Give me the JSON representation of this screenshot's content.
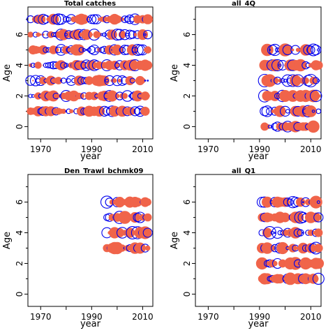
{
  "chart_data": [
    {
      "type": "scatter",
      "style": "bubble",
      "title": "Total catches",
      "xlabel": "year",
      "ylabel": "Age",
      "xlim": [
        1965,
        2014
      ],
      "ylim": [
        -0.8,
        7.8
      ],
      "xticks": [
        1970,
        1990,
        2010
      ],
      "yticks": [
        0,
        2,
        4,
        6
      ],
      "years": [
        1963,
        2012
      ],
      "ages": [
        1,
        7
      ],
      "pos_color": "#0000ee",
      "neg_color": "#f0644a",
      "seed": 11,
      "density": 1.0,
      "max_r": 8
    },
    {
      "type": "scatter",
      "style": "bubble",
      "title": "all_4Q",
      "xlabel": "year",
      "ylabel": "Age",
      "xlim": [
        1965,
        2014
      ],
      "ylim": [
        -0.8,
        7.8
      ],
      "xticks": [
        1970,
        1990,
        2010
      ],
      "yticks": [
        0,
        2,
        4,
        6
      ],
      "years": [
        1992,
        2013
      ],
      "ages": [
        0,
        5
      ],
      "pos_color": "#0000ee",
      "neg_color": "#f0644a",
      "seed": 23,
      "density": 1.0,
      "max_r": 9
    },
    {
      "type": "scatter",
      "style": "bubble",
      "title": "Den_Trawl_bchmk09",
      "xlabel": "year",
      "ylabel": "Age",
      "xlim": [
        1965,
        2014
      ],
      "ylim": [
        -0.8,
        7.8
      ],
      "xticks": [
        1970,
        1990,
        2010
      ],
      "yticks": [
        0,
        2,
        4,
        6
      ],
      "years": [
        1996,
        2012
      ],
      "ages": [
        3,
        6
      ],
      "pos_color": "#0000ee",
      "neg_color": "#f0644a",
      "seed": 37,
      "density": 1.0,
      "max_r": 9
    },
    {
      "type": "scatter",
      "style": "bubble",
      "title": "all_Q1",
      "xlabel": "year",
      "ylabel": "Age",
      "xlim": [
        1965,
        2014
      ],
      "ylim": [
        -0.8,
        7.8
      ],
      "xticks": [
        1970,
        1990,
        2010
      ],
      "yticks": [
        0,
        2,
        4,
        6
      ],
      "years": [
        1991,
        2013
      ],
      "ages": [
        1,
        6
      ],
      "pos_color": "#0000ee",
      "neg_color": "#f0644a",
      "seed": 53,
      "density": 1.0,
      "max_r": 9
    }
  ]
}
